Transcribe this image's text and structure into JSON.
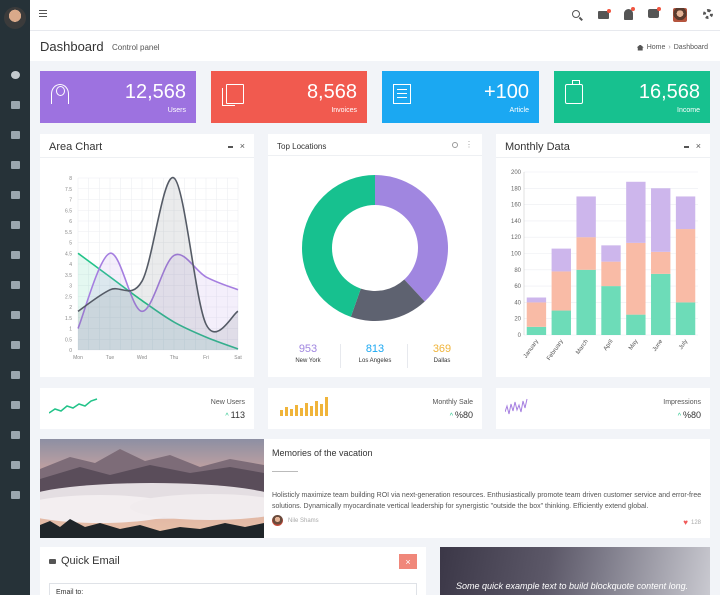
{
  "header": {
    "page_title": "Dashboard",
    "page_subtitle": "Control panel",
    "breadcrumb": [
      "Home",
      "Dashboard"
    ]
  },
  "stats": [
    {
      "value": "12,568",
      "label": "Users",
      "color": "#9d72e0",
      "icon": "user-icon"
    },
    {
      "value": "8,568",
      "label": "Invoices",
      "color": "#f15a4f",
      "icon": "files-icon"
    },
    {
      "value": "+100",
      "label": "Article",
      "color": "#1ba8f2",
      "icon": "list-icon"
    },
    {
      "value": "16,568",
      "label": "Income",
      "color": "#17c18f",
      "icon": "briefcase-icon"
    }
  ],
  "area_chart": {
    "title": "Area Chart",
    "chart_data": {
      "type": "area",
      "categories": [
        "Mon",
        "Tue",
        "Wed",
        "Thu",
        "Fri",
        "Sat"
      ],
      "yticks": [
        "0",
        "0.5",
        "1",
        "1.5",
        "2",
        "2.5",
        "3",
        "3.5",
        "4",
        "4.5",
        "5",
        "5.5",
        "6",
        "6.5",
        "7",
        "7.5",
        "8"
      ],
      "ylim": [
        0,
        8
      ],
      "series": [
        {
          "color": "#22c389",
          "values": [
            4.5,
            3.4,
            2.3,
            1.3,
            0.6,
            0.05
          ]
        },
        {
          "color": "#a57ee0",
          "values": [
            1.0,
            4.5,
            1.8,
            4.4,
            3.4,
            2.8
          ]
        },
        {
          "color": "#555b66",
          "values": [
            1.8,
            2.8,
            3.2,
            8.0,
            1.2,
            1.8
          ]
        }
      ]
    }
  },
  "top_locations": {
    "title": "Top Locations",
    "chart_data": {
      "type": "pie",
      "slices": [
        {
          "label": "Los Angeles",
          "value": 813,
          "color": "#a086e0"
        },
        {
          "label": "Dallas",
          "value": 369,
          "color": "#5e6270"
        },
        {
          "label": "New York",
          "value": 953,
          "color": "#17c18f"
        }
      ]
    },
    "legend": [
      {
        "value": "953",
        "city": "New York",
        "color": "#a086e0"
      },
      {
        "value": "813",
        "city": "Los Angeles",
        "color": "#1ba8f2"
      },
      {
        "value": "369",
        "city": "Dallas",
        "color": "#f0b43a"
      }
    ]
  },
  "monthly_data": {
    "title": "Monthly Data",
    "chart_data": {
      "type": "bar",
      "categories": [
        "January",
        "February",
        "March",
        "April",
        "May",
        "June",
        "July"
      ],
      "ylim": [
        0,
        200
      ],
      "yticks": [
        0,
        20,
        40,
        60,
        80,
        100,
        120,
        140,
        160,
        180,
        200
      ],
      "series": [
        {
          "color": "#6ddcb8",
          "values": [
            10,
            30,
            80,
            60,
            25,
            75,
            40
          ]
        },
        {
          "color": "#f9bba6",
          "values": [
            30,
            48,
            40,
            30,
            88,
            27,
            90
          ]
        },
        {
          "color": "#cdb6ec",
          "values": [
            6,
            28,
            50,
            20,
            75,
            78,
            40
          ]
        }
      ]
    }
  },
  "mini_stats": [
    {
      "label": "New Users",
      "value": "113",
      "chart": "line",
      "color": "#22c389"
    },
    {
      "label": "Monthly Sale",
      "value": "%80",
      "chart": "bar",
      "color": "#f0b43a"
    },
    {
      "label": "Impressions",
      "value": "%80",
      "chart": "spark",
      "color": "#a57ee0"
    }
  ],
  "blog": {
    "title": "Memories of the vacation",
    "text": "Holisticly maximize team building ROI via next-generation resources. Enthusiastically promote team driven customer service and error-free solutions. Dynamically myocardinate vertical leadership for synergistic \"outside the box\" thinking. Efficiently extend global.",
    "author": "Nile Shams",
    "likes": "128"
  },
  "quick_email": {
    "title": "Quick Email",
    "close": "×",
    "email_placeholder": "Email to:"
  },
  "quote": {
    "text": "Some quick example text to build blockquote content long."
  }
}
